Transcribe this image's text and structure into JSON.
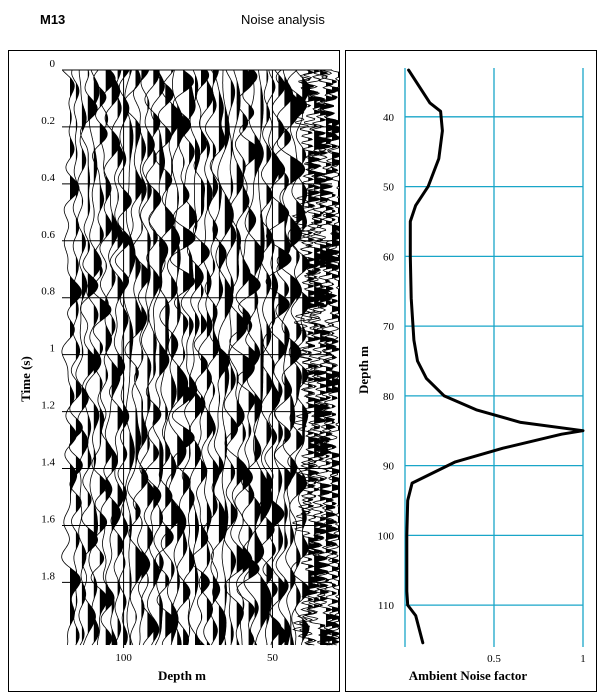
{
  "header": {
    "well_id": "M13",
    "title": "Noise analysis"
  },
  "colors": {
    "trace": "#000000",
    "grid_left": "#000000",
    "grid_right": "#19a6c8",
    "curve": "#000000",
    "border": "#000000"
  },
  "chart_data": [
    {
      "type": "line",
      "subtype": "seismic-wiggle-traces",
      "xlabel": "Depth m",
      "ylabel": "Time (s)",
      "x_ticks": [
        100,
        50
      ],
      "y_ticks": [
        0,
        0.2,
        0.4,
        0.6,
        0.8,
        1,
        1.2,
        1.4,
        1.6,
        1.8
      ],
      "y_tick_labels": [
        "0",
        "0.2",
        "0.4",
        "0.6",
        "0.8",
        "1",
        "1.2",
        "1.4",
        "1.6",
        "1.8"
      ],
      "xlim": [
        119,
        30
      ],
      "ylim": [
        0,
        2.02
      ],
      "y_inverted": true,
      "trace_count": 46,
      "trace_spacing_m": 2,
      "trace_first_depth_m": 118,
      "grid": "horizontal-and-vertical",
      "fill": "positive-lobes-black"
    },
    {
      "type": "line",
      "xlabel": "Ambient Noise factor",
      "ylabel": "Depth m",
      "x_ticks": [
        0.5,
        1
      ],
      "x_tick_labels": [
        "0.5",
        "1"
      ],
      "y_ticks": [
        40,
        50,
        60,
        70,
        80,
        90,
        100,
        110
      ],
      "y_tick_labels": [
        "40",
        "50",
        "60",
        "70",
        "80",
        "90",
        "100",
        "110"
      ],
      "xlim": [
        0,
        1
      ],
      "ylim": [
        33,
        116
      ],
      "y_inverted": true,
      "grid": true,
      "series": [
        {
          "x": [
            0.02,
            0.14,
            0.2,
            0.21,
            0.19,
            0.13,
            0.06,
            0.03,
            0.03,
            0.035,
            0.05,
            0.07,
            0.12,
            0.22,
            0.4,
            0.65,
            1.0,
            0.88,
            0.55,
            0.28,
            0.04,
            0.015,
            0.01,
            0.01,
            0.01,
            0.015,
            0.06,
            0.1
          ],
          "y": [
            33.3,
            38.0,
            39.2,
            42.0,
            46.0,
            50.0,
            52.7,
            55.0,
            60.0,
            66.0,
            72.0,
            75.0,
            77.5,
            80.0,
            82.0,
            83.8,
            85.0,
            85.5,
            87.5,
            89.5,
            92.5,
            95.0,
            100.0,
            104.0,
            108.0,
            110.0,
            111.5,
            115.4
          ]
        }
      ]
    }
  ]
}
